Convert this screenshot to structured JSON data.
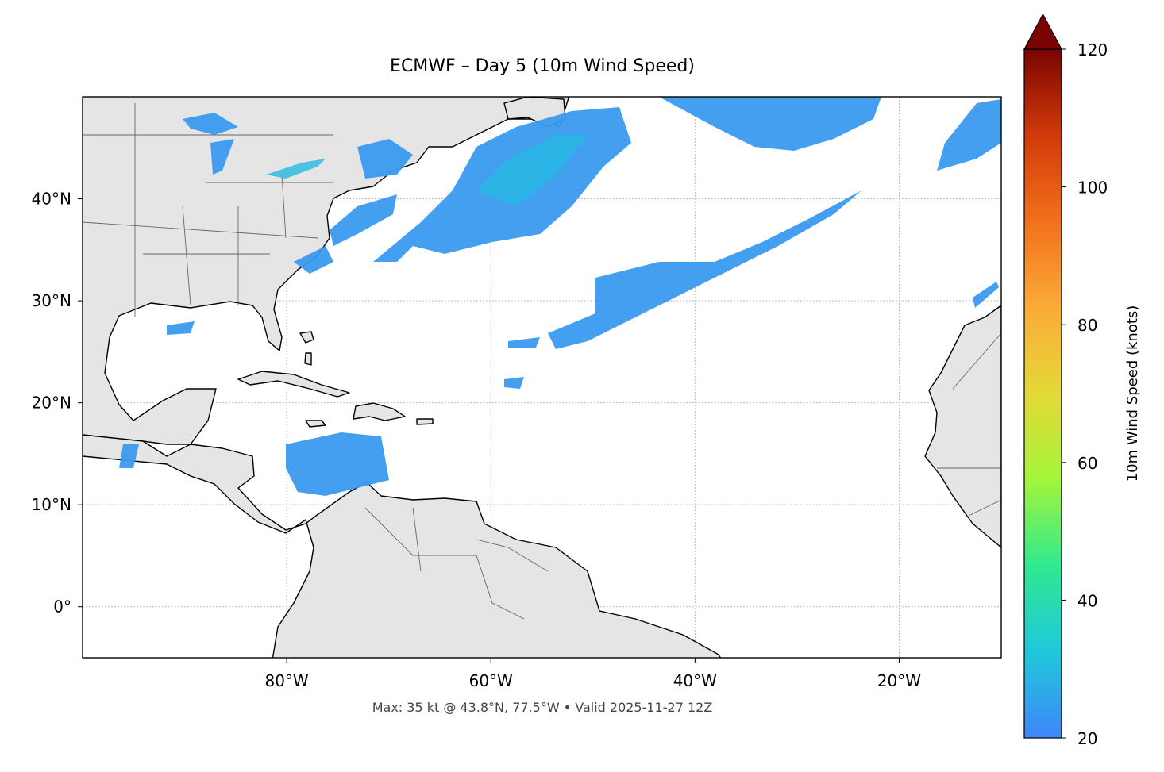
{
  "map": {
    "title": "ECMWF – Day 5 (10m Wind Speed)",
    "footer": "Max: 35 kt @ 43.8°N, 77.5°W • Valid 2025-11-27 12Z",
    "xlim": [
      -100,
      -10
    ],
    "ylim": [
      -5,
      50
    ],
    "xticks": [
      {
        "value": -80,
        "label": "80°W"
      },
      {
        "value": -60,
        "label": "60°W"
      },
      {
        "value": -40,
        "label": "40°W"
      },
      {
        "value": -20,
        "label": "20°W"
      }
    ],
    "yticks": [
      {
        "value": 0,
        "label": "0°"
      },
      {
        "value": 10,
        "label": "10°N"
      },
      {
        "value": 20,
        "label": "20°N"
      },
      {
        "value": 30,
        "label": "30°N"
      },
      {
        "value": 40,
        "label": "40°N"
      }
    ],
    "grid": true,
    "colorbar": {
      "label": "10m Wind Speed (knots)",
      "lim": [
        20,
        120
      ],
      "ticks": [
        20,
        40,
        60,
        80,
        100,
        120
      ],
      "extend": "max",
      "colors": [
        "#3f86f8",
        "#1fc8dc",
        "#2ee98f",
        "#a4f53a",
        "#e4d936",
        "#fbab38",
        "#f2701c",
        "#d23a09",
        "#7a0403"
      ]
    }
  }
}
